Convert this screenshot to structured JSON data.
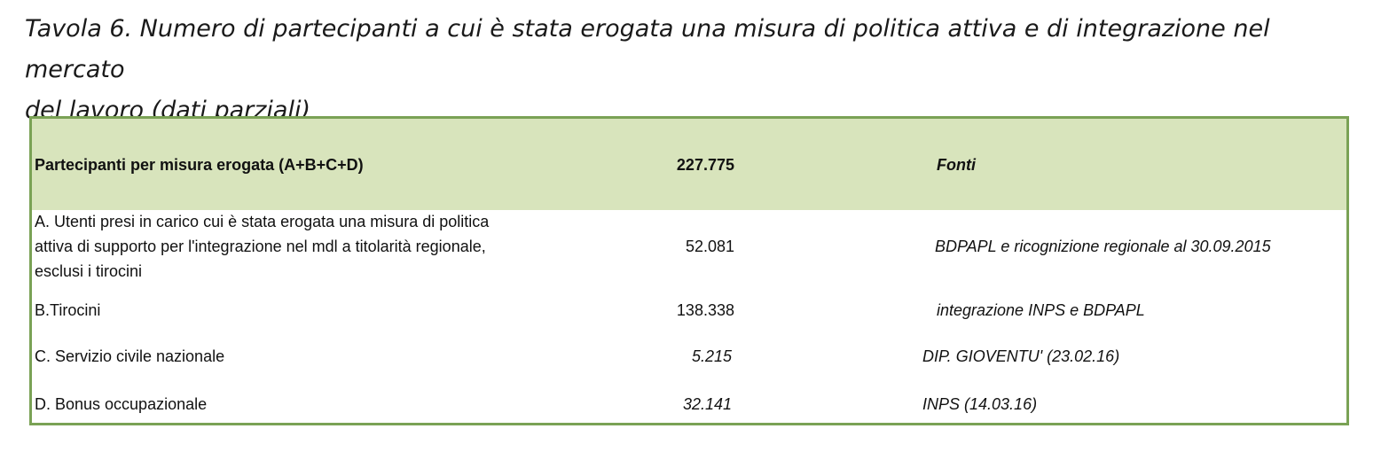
{
  "title": {
    "line1": "Tavola 6. Numero di partecipanti a cui è stata erogata una misura di politica attiva e di integrazione nel mercato",
    "line2": "del lavoro (dati parziali)"
  },
  "table": {
    "header": {
      "label": "Partecipanti per misura erogata (A+B+C+D)",
      "value": "227.775",
      "source": "Fonti"
    },
    "rows": [
      {
        "label_lines": [
          "A. Utenti presi in carico cui è stata erogata una misura di politica",
          "attiva di supporto per l'integrazione nel mdl a titolarità regionale,",
          "esclusi i tirocini"
        ],
        "value": "52.081",
        "source": "BDPAPL  e ricognizione regionale al 30.09.2015"
      },
      {
        "label": "B.Tirocini",
        "value": "138.338",
        "source": "integrazione INPS e BDPAPL"
      },
      {
        "label": "C. Servizio civile nazionale",
        "value": "5.215",
        "source": "DIP. GIOVENTU' (23.02.16)"
      },
      {
        "label": "D. Bonus occupazionale",
        "value": "32.141",
        "source": "INPS (14.03.16)"
      }
    ]
  },
  "colors": {
    "header_fill": "#d8e4bc",
    "border": "#7aa255"
  }
}
